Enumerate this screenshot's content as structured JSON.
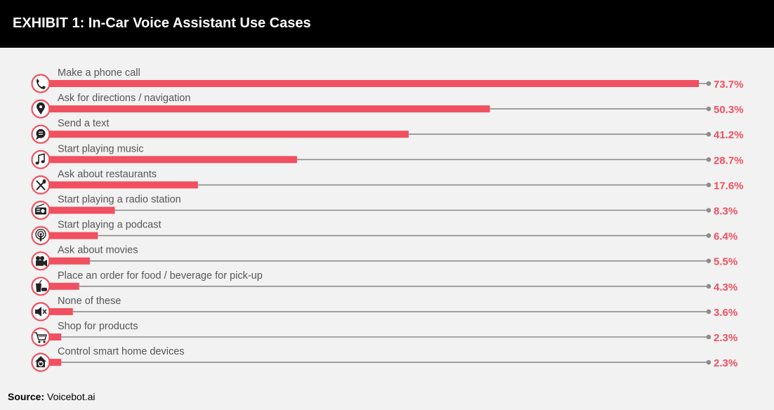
{
  "header": {
    "title": "EXHIBIT 1: In-Car Voice Assistant Use Cases"
  },
  "colors": {
    "bar": "#f0505f",
    "line": "#8c8c8c",
    "icon": "#222222",
    "circle": "#f0505f",
    "value_text": "#f0505f"
  },
  "chart_data": {
    "type": "bar",
    "orientation": "horizontal",
    "title": "EXHIBIT 1: In-Car Voice Assistant Use Cases",
    "xlim": [
      0,
      73.7
    ],
    "grid": false,
    "categories": [
      "Make a phone call",
      "Ask for directions / navigation",
      "Send a text",
      "Start playing music",
      "Ask about restaurants",
      "Start playing a radio station",
      "Start playing a podcast",
      "Ask about movies",
      "Place an order for food / beverage for pick-up",
      "None of these",
      "Shop for products",
      "Control smart home devices"
    ],
    "values": [
      73.7,
      50.3,
      41.2,
      28.7,
      17.6,
      8.3,
      6.4,
      5.5,
      4.3,
      3.6,
      2.3,
      2.3
    ],
    "value_labels": [
      "73.7%",
      "50.3%",
      "41.2%",
      "28.7%",
      "17.6%",
      "8.3%",
      "6.4%",
      "5.5%",
      "4.3%",
      "3.6%",
      "2.3%",
      "2.3%"
    ],
    "icons": [
      "phone-icon",
      "location-pin-icon",
      "chat-bubble-icon",
      "music-note-icon",
      "fork-knife-icon",
      "radio-icon",
      "podcast-icon",
      "movie-camera-icon",
      "takeout-food-icon",
      "mute-icon",
      "shopping-cart-icon",
      "smart-home-icon"
    ]
  },
  "footer": {
    "source_label": "Source:",
    "source_value": "Voicebot.ai"
  }
}
